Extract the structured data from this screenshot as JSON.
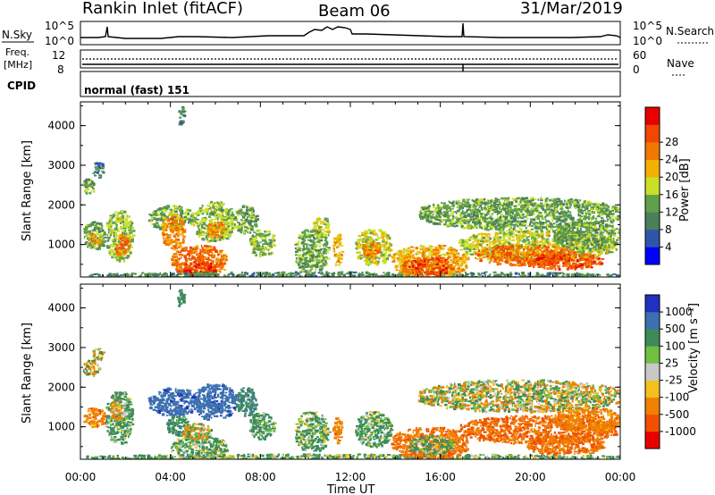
{
  "header": {
    "station": "Rankin Inlet (fitACF)",
    "beam": "Beam 06",
    "date": "31/Mar/2019"
  },
  "nsky_panel": {
    "left_label": "N.Sky",
    "right_label": "N.Search",
    "ticks": [
      "10^5",
      "10^0"
    ]
  },
  "freq_panel": {
    "left_label_line1": "Freq.",
    "left_label_line2": "[MHz]",
    "left_ticks": [
      "12",
      "8"
    ],
    "right_label": "Nave",
    "right_ticks": [
      "60",
      "0"
    ]
  },
  "cpid_panel": {
    "left_label": "CPID",
    "mode_text": "normal (fast) 151"
  },
  "colors": {
    "power_scale": [
      "#0000ff",
      "#2e56a8",
      "#4a7f5a",
      "#60a04a",
      "#c8e02a",
      "#f4b000",
      "#f07800",
      "#f04800",
      "#e80000"
    ],
    "velocity_scale": [
      "#e80000",
      "#f05000",
      "#f08000",
      "#f4c020",
      "#c8c8c8",
      "#70c040",
      "#3c8c5a",
      "#3c70b0",
      "#2030c0"
    ]
  },
  "chart_data": [
    {
      "type": "heatmap",
      "quantity": "Power",
      "ylabel": "Slant Range [km]",
      "yticks": [
        1000,
        2000,
        3000,
        4000
      ],
      "ylim": [
        180,
        4600
      ],
      "xlim_hours": [
        0,
        24
      ],
      "colorbar_label": "Power [dB]",
      "colorbar_ticks": [
        "4",
        "8",
        "12",
        "16",
        "20",
        "24",
        "28"
      ],
      "colorbar_range": [
        0,
        32
      ],
      "regions": [
        {
          "t0": 0.1,
          "t1": 0.6,
          "r0": 2300,
          "r1": 2700,
          "v": 12
        },
        {
          "t0": 0.5,
          "t1": 1.0,
          "r0": 2700,
          "r1": 3100,
          "v": 8
        },
        {
          "t0": 0.1,
          "t1": 1.1,
          "r0": 900,
          "r1": 1600,
          "v": 12
        },
        {
          "t0": 0.3,
          "t1": 0.9,
          "r0": 1000,
          "r1": 1300,
          "v": 20
        },
        {
          "t0": 1.1,
          "t1": 2.3,
          "r0": 600,
          "r1": 1900,
          "v": 14
        },
        {
          "t0": 1.5,
          "t1": 2.1,
          "r0": 700,
          "r1": 1300,
          "v": 24
        },
        {
          "t0": 3.0,
          "t1": 5.0,
          "r0": 1400,
          "r1": 2000,
          "v": 12
        },
        {
          "t0": 3.6,
          "t1": 4.6,
          "r0": 900,
          "r1": 1800,
          "v": 22
        },
        {
          "t0": 4.0,
          "t1": 6.5,
          "r0": 200,
          "r1": 1000,
          "v": 24
        },
        {
          "t0": 4.5,
          "t1": 6.0,
          "r0": 200,
          "r1": 600,
          "v": 28
        },
        {
          "t0": 5.0,
          "t1": 6.8,
          "r0": 1100,
          "r1": 2100,
          "v": 14
        },
        {
          "t0": 5.6,
          "t1": 6.4,
          "r0": 1200,
          "r1": 1600,
          "v": 22
        },
        {
          "t0": 6.8,
          "t1": 7.8,
          "r0": 1300,
          "r1": 2000,
          "v": 12
        },
        {
          "t0": 7.5,
          "t1": 8.6,
          "r0": 700,
          "r1": 1400,
          "v": 14
        },
        {
          "t0": 4.3,
          "t1": 4.6,
          "r0": 4000,
          "r1": 4500,
          "v": 10
        },
        {
          "t0": 0.2,
          "t1": 24.0,
          "r0": 180,
          "r1": 330,
          "v": 10
        },
        {
          "t0": 9.5,
          "t1": 11.0,
          "r0": 300,
          "r1": 1400,
          "v": 12
        },
        {
          "t0": 10.3,
          "t1": 11.1,
          "r0": 1200,
          "r1": 1700,
          "v": 16
        },
        {
          "t0": 11.2,
          "t1": 11.6,
          "r0": 500,
          "r1": 1300,
          "v": 20
        },
        {
          "t0": 12.2,
          "t1": 13.8,
          "r0": 500,
          "r1": 1400,
          "v": 16
        },
        {
          "t0": 12.5,
          "t1": 13.3,
          "r0": 700,
          "r1": 1100,
          "v": 22
        },
        {
          "t0": 13.8,
          "t1": 17.2,
          "r0": 200,
          "r1": 1000,
          "v": 20
        },
        {
          "t0": 14.3,
          "t1": 16.5,
          "r0": 250,
          "r1": 700,
          "v": 26
        },
        {
          "t0": 15.0,
          "t1": 24.0,
          "r0": 1400,
          "r1": 2200,
          "v": 12
        },
        {
          "t0": 16.8,
          "t1": 23.8,
          "r0": 600,
          "r1": 1400,
          "v": 16
        },
        {
          "t0": 17.5,
          "t1": 22.0,
          "r0": 500,
          "r1": 1000,
          "v": 24
        },
        {
          "t0": 19.8,
          "t1": 23.2,
          "r0": 400,
          "r1": 800,
          "v": 26
        },
        {
          "t0": 21.0,
          "t1": 24.0,
          "r0": 900,
          "r1": 1600,
          "v": 12
        }
      ]
    },
    {
      "type": "heatmap",
      "quantity": "Velocity",
      "ylabel": "Slant Range [km]",
      "xlabel": "Time UT",
      "xticks": [
        "00:00",
        "04:00",
        "08:00",
        "12:00",
        "16:00",
        "20:00",
        "00:00"
      ],
      "yticks": [
        1000,
        2000,
        3000,
        4000
      ],
      "ylim": [
        180,
        4600
      ],
      "xlim_hours": [
        0,
        24
      ],
      "colorbar_label": "Velocity [m s⁻¹]",
      "colorbar_ticks": [
        "-1000",
        "-500",
        "-100",
        "-25",
        "25",
        "100",
        "500",
        "1000"
      ],
      "colorbar_range": [
        -1200,
        1200
      ],
      "regions": [
        {
          "t0": 0.1,
          "t1": 0.8,
          "r0": 2300,
          "r1": 2700,
          "v": 0
        },
        {
          "t0": 0.5,
          "t1": 1.0,
          "r0": 2700,
          "r1": 3000,
          "v": 10
        },
        {
          "t0": 0.1,
          "t1": 1.1,
          "r0": 1000,
          "r1": 1500,
          "v": -300
        },
        {
          "t0": 1.1,
          "t1": 2.3,
          "r0": 600,
          "r1": 1900,
          "v": 200
        },
        {
          "t0": 1.3,
          "t1": 1.9,
          "r0": 1200,
          "r1": 1700,
          "v": -200
        },
        {
          "t0": 3.0,
          "t1": 5.2,
          "r0": 1300,
          "r1": 2000,
          "v": 800
        },
        {
          "t0": 3.8,
          "t1": 4.8,
          "r0": 800,
          "r1": 1300,
          "v": 300
        },
        {
          "t0": 4.0,
          "t1": 6.5,
          "r0": 200,
          "r1": 800,
          "v": 150
        },
        {
          "t0": 4.5,
          "t1": 5.8,
          "r0": 700,
          "r1": 1100,
          "v": 0
        },
        {
          "t0": 5.0,
          "t1": 6.9,
          "r0": 1200,
          "r1": 2100,
          "v": 800
        },
        {
          "t0": 6.9,
          "t1": 7.8,
          "r0": 1300,
          "r1": 2000,
          "v": 400
        },
        {
          "t0": 7.5,
          "t1": 8.6,
          "r0": 700,
          "r1": 1400,
          "v": 200
        },
        {
          "t0": 4.3,
          "t1": 4.6,
          "r0": 4000,
          "r1": 4500,
          "v": 300
        },
        {
          "t0": 0.2,
          "t1": 24.0,
          "r0": 180,
          "r1": 330,
          "v": 150
        },
        {
          "t0": 9.5,
          "t1": 11.0,
          "r0": 400,
          "r1": 1400,
          "v": 150
        },
        {
          "t0": 11.2,
          "t1": 11.6,
          "r0": 600,
          "r1": 1300,
          "v": -300
        },
        {
          "t0": 12.2,
          "t1": 13.8,
          "r0": 500,
          "r1": 1400,
          "v": 200
        },
        {
          "t0": 13.8,
          "t1": 17.2,
          "r0": 200,
          "r1": 1000,
          "v": -400
        },
        {
          "t0": 14.6,
          "t1": 16.6,
          "r0": 300,
          "r1": 800,
          "v": 150
        },
        {
          "t0": 15.0,
          "t1": 24.0,
          "r0": 1400,
          "r1": 2200,
          "v": 0
        },
        {
          "t0": 16.8,
          "t1": 23.8,
          "r0": 600,
          "r1": 1300,
          "v": -500
        },
        {
          "t0": 19.8,
          "t1": 23.2,
          "r0": 300,
          "r1": 800,
          "v": -450
        },
        {
          "t0": 21.0,
          "t1": 24.0,
          "r0": 900,
          "r1": 1500,
          "v": -300
        }
      ]
    }
  ]
}
